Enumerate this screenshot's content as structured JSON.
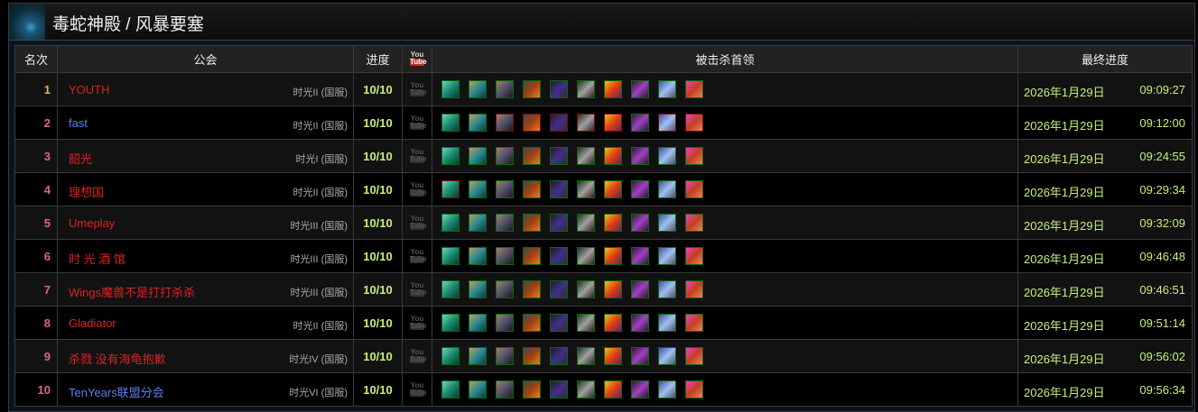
{
  "header": {
    "title": "毒蛇神殿 / 风暴要塞"
  },
  "columns": {
    "rank": "名次",
    "guild": "公会",
    "progress": "进度",
    "youtube": "YouTube",
    "bosses": "被击杀首领",
    "final": "最终进度"
  },
  "colors": {
    "guild_red": "#e02020",
    "guild_blue": "#5b7fe8",
    "progress": "#c8f078",
    "killed_border": "#0a6a0a",
    "missing_border": "#7a0a0a"
  },
  "bosses": [
    {
      "icon": "boss-1-icon",
      "bg": "linear-gradient(135deg,#6fd6c0,#1a8a70,#0c3a30)"
    },
    {
      "icon": "boss-2-icon",
      "bg": "linear-gradient(135deg,#c09a60,#2a8a90,#0c3a40)"
    },
    {
      "icon": "boss-3-icon",
      "bg": "linear-gradient(135deg,#a08070,#50506a,#201818)"
    },
    {
      "icon": "boss-4-icon",
      "bg": "linear-gradient(135deg,#404a4a,#a04010,#e08030)"
    },
    {
      "icon": "boss-5-icon",
      "bg": "linear-gradient(135deg,#201828,#40308a,#302838)"
    },
    {
      "icon": "boss-6-icon",
      "bg": "linear-gradient(135deg,#203020,#a0a0a0,#302020)"
    },
    {
      "icon": "boss-7-icon",
      "bg": "linear-gradient(135deg,#f0c020,#e04010,#6a2060)"
    },
    {
      "icon": "boss-8-icon",
      "bg": "linear-gradient(135deg,#301838,#a040c0,#281830)"
    },
    {
      "icon": "boss-9-icon",
      "bg": "linear-gradient(135deg,#4050a0,#a0c0f0,#505070)"
    },
    {
      "icon": "boss-10-icon",
      "bg": "linear-gradient(135deg,#f040c0,#c04020,#f08060)"
    }
  ],
  "rows": [
    {
      "rank": "1",
      "guild": "YOUTH",
      "color": "red",
      "realm": "时光II (国服)",
      "progress": "10/10",
      "date": "2026年1月29日",
      "time": "09:09:27",
      "missing": []
    },
    {
      "rank": "2",
      "guild": "fast",
      "color": "blue",
      "realm": "时光II (国服)",
      "progress": "10/10",
      "date": "2026年1月29日",
      "time": "09:12:00",
      "missing": [
        3,
        4,
        5,
        6,
        7,
        9,
        10
      ]
    },
    {
      "rank": "3",
      "guild": "韶光",
      "color": "red",
      "realm": "时光I (国服)",
      "progress": "10/10",
      "date": "2026年1月29日",
      "time": "09:24:55",
      "missing": []
    },
    {
      "rank": "4",
      "guild": "理想国",
      "color": "red",
      "realm": "时光II (国服)",
      "progress": "10/10",
      "date": "2026年1月29日",
      "time": "09:29:34",
      "missing": [
        1
      ]
    },
    {
      "rank": "5",
      "guild": "Umeplay",
      "color": "red",
      "realm": "时光III (国服)",
      "progress": "10/10",
      "date": "2026年1月29日",
      "time": "09:32:09",
      "missing": []
    },
    {
      "rank": "6",
      "guild": "时 光 酒 馆",
      "color": "red",
      "realm": "时光III (国服)",
      "progress": "10/10",
      "date": "2026年1月29日",
      "time": "09:46:48",
      "missing": []
    },
    {
      "rank": "7",
      "guild": "Wings魔兽不是打打杀杀",
      "color": "red",
      "realm": "时光III (国服)",
      "progress": "10/10",
      "date": "2026年1月29日",
      "time": "09:46:51",
      "missing": []
    },
    {
      "rank": "8",
      "guild": "Gladiator",
      "color": "red",
      "realm": "时光II (国服)",
      "progress": "10/10",
      "date": "2026年1月29日",
      "time": "09:51:14",
      "missing": []
    },
    {
      "rank": "9",
      "guild": "杀戮 没有海龟抱歉",
      "color": "red",
      "realm": "时光IV (国服)",
      "progress": "10/10",
      "date": "2026年1月29日",
      "time": "09:56:02",
      "missing": []
    },
    {
      "rank": "10",
      "guild": "TenYears联盟分会",
      "color": "blue",
      "realm": "时光VI (国服)",
      "progress": "10/10",
      "date": "2026年1月29日",
      "time": "09:56:34",
      "missing": []
    }
  ]
}
